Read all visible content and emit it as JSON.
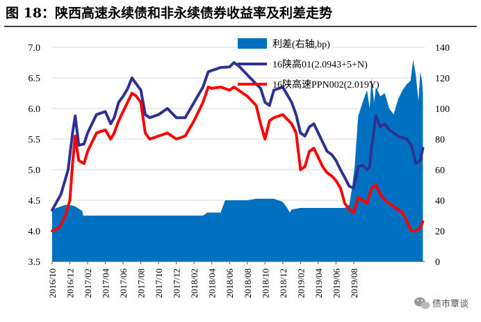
{
  "title": "图 18：陕西高速永续债和非永续债券收益率及利差走势",
  "watermark": "债市覃谈",
  "colors": {
    "spread": "#0070C0",
    "perpetual": "#2E3192",
    "nonperpetual": "#FF0000",
    "grid": "#D9D9D9",
    "title_rule": "#000000"
  },
  "chart_data": {
    "type": "area+line",
    "title": "图 18：陕西高速永续债和非永续债券收益率及利差走势",
    "left_axis": {
      "min": 3.5,
      "max": 7.0,
      "step": 0.5,
      "ticks": [
        "3.5",
        "4.0",
        "4.5",
        "5.0",
        "5.5",
        "6.0",
        "6.5",
        "7.0"
      ],
      "unit": "%"
    },
    "right_axis": {
      "min": 0,
      "max": 140,
      "step": 20,
      "ticks": [
        "0",
        "20",
        "40",
        "60",
        "80",
        "100",
        "120",
        "140"
      ],
      "unit": "bp"
    },
    "x_axis": {
      "start": "2016-10",
      "end": "2019-08",
      "tick_labels": [
        "2016/10",
        "2016/12",
        "2017/02",
        "2017/04",
        "2017/06",
        "2017/08",
        "2017/10",
        "2017/12",
        "2018/02",
        "2018/04",
        "2018/06",
        "2018/08",
        "2018/10",
        "2018/12",
        "2019/02",
        "2019/04",
        "2019/06",
        "2019/08"
      ]
    },
    "grid": true,
    "legend_position": "top-right",
    "series": [
      {
        "name": "利差(右轴,bp)",
        "type": "area",
        "axis": "right",
        "points": [
          [
            0,
            34
          ],
          [
            0.5,
            35
          ],
          [
            1,
            36
          ],
          [
            1.5,
            37
          ],
          [
            2,
            37
          ],
          [
            2.6,
            36
          ],
          [
            3.4,
            33
          ],
          [
            3.5,
            30
          ],
          [
            5,
            30
          ],
          [
            8,
            30
          ],
          [
            12,
            30
          ],
          [
            15,
            30
          ],
          [
            17,
            30
          ],
          [
            17.5,
            32
          ],
          [
            19,
            32
          ],
          [
            19.5,
            40
          ],
          [
            20,
            40
          ],
          [
            22,
            40
          ],
          [
            23,
            41
          ],
          [
            25,
            41
          ],
          [
            25.5,
            40
          ],
          [
            26,
            39
          ],
          [
            26.5,
            35
          ],
          [
            26.8,
            32
          ],
          [
            27,
            34
          ],
          [
            28,
            35
          ],
          [
            29,
            35
          ],
          [
            30,
            35
          ],
          [
            31,
            35
          ],
          [
            32,
            35
          ],
          [
            33,
            35
          ],
          [
            33.5,
            37
          ],
          [
            33.8,
            48
          ],
          [
            34.1,
            62
          ],
          [
            34.5,
            95
          ],
          [
            35,
            104
          ],
          [
            35.5,
            112
          ],
          [
            35.8,
            100
          ],
          [
            36,
            120
          ],
          [
            36.3,
            104
          ],
          [
            36.5,
            114
          ],
          [
            37,
            108
          ],
          [
            37.5,
            110
          ],
          [
            38,
            100
          ],
          [
            38.5,
            96
          ],
          [
            39,
            106
          ],
          [
            39.5,
            112
          ],
          [
            40,
            116
          ],
          [
            40.4,
            118
          ],
          [
            40.7,
            132
          ],
          [
            41,
            122
          ],
          [
            41.3,
            105
          ],
          [
            41.5,
            124
          ],
          [
            41.7,
            118
          ],
          [
            41.8,
            110
          ]
        ]
      },
      {
        "name": "16陕高01(2.0943+5+N)",
        "type": "line",
        "axis": "left",
        "points": [
          [
            0,
            4.34
          ],
          [
            1,
            4.6
          ],
          [
            1.8,
            5.0
          ],
          [
            2.3,
            5.6
          ],
          [
            2.6,
            5.88
          ],
          [
            3,
            5.4
          ],
          [
            3.6,
            5.42
          ],
          [
            4,
            5.6
          ],
          [
            5,
            5.9
          ],
          [
            6,
            5.95
          ],
          [
            6.6,
            5.75
          ],
          [
            7,
            5.85
          ],
          [
            7.5,
            6.1
          ],
          [
            8,
            6.2
          ],
          [
            8.5,
            6.32
          ],
          [
            9,
            6.5
          ],
          [
            9.5,
            6.4
          ],
          [
            10,
            6.3
          ],
          [
            10.5,
            5.9
          ],
          [
            11,
            5.85
          ],
          [
            12,
            5.9
          ],
          [
            13,
            6.0
          ],
          [
            14,
            5.85
          ],
          [
            15,
            5.85
          ],
          [
            16,
            6.1
          ],
          [
            17,
            6.35
          ],
          [
            17.6,
            6.6
          ],
          [
            18,
            6.62
          ],
          [
            19,
            6.67
          ],
          [
            20,
            6.68
          ],
          [
            20.5,
            6.75
          ],
          [
            21,
            6.7
          ],
          [
            22,
            6.55
          ],
          [
            23,
            6.4
          ],
          [
            23.5,
            6.33
          ],
          [
            24,
            6.1
          ],
          [
            24.5,
            6.05
          ],
          [
            25,
            6.3
          ],
          [
            26,
            6.35
          ],
          [
            27,
            6.1
          ],
          [
            27.5,
            5.9
          ],
          [
            28,
            5.6
          ],
          [
            28.5,
            5.55
          ],
          [
            29,
            5.7
          ],
          [
            29.5,
            5.75
          ],
          [
            30,
            5.6
          ],
          [
            30.5,
            5.45
          ],
          [
            31,
            5.3
          ],
          [
            31.5,
            5.25
          ],
          [
            32,
            5.15
          ],
          [
            32.5,
            5.0
          ],
          [
            33,
            4.87
          ],
          [
            33.5,
            4.73
          ],
          [
            34,
            4.7
          ],
          [
            34.5,
            5.05
          ],
          [
            35,
            5.07
          ],
          [
            35.5,
            5.0
          ],
          [
            35.8,
            5.05
          ],
          [
            36,
            5.35
          ],
          [
            36.5,
            5.88
          ],
          [
            37,
            5.7
          ],
          [
            37.5,
            5.75
          ],
          [
            38,
            5.65
          ],
          [
            38.5,
            5.6
          ],
          [
            39,
            5.55
          ],
          [
            39.5,
            5.52
          ],
          [
            40,
            5.5
          ],
          [
            40.5,
            5.4
          ],
          [
            41,
            5.1
          ],
          [
            41.5,
            5.15
          ],
          [
            41.8,
            5.35
          ]
        ]
      },
      {
        "name": "16陕高速PPN002(2.019Y)",
        "type": "line",
        "axis": "left",
        "points": [
          [
            0,
            4.0
          ],
          [
            0.8,
            4.05
          ],
          [
            1.5,
            4.25
          ],
          [
            2,
            4.5
          ],
          [
            2.3,
            5.1
          ],
          [
            2.6,
            5.55
          ],
          [
            3,
            5.15
          ],
          [
            3.6,
            5.1
          ],
          [
            4,
            5.3
          ],
          [
            5,
            5.6
          ],
          [
            6,
            5.65
          ],
          [
            6.6,
            5.5
          ],
          [
            7,
            5.6
          ],
          [
            7.5,
            5.8
          ],
          [
            8,
            5.95
          ],
          [
            8.5,
            6.1
          ],
          [
            9,
            6.25
          ],
          [
            9.5,
            6.2
          ],
          [
            10,
            6.1
          ],
          [
            10.5,
            5.6
          ],
          [
            11,
            5.5
          ],
          [
            12,
            5.55
          ],
          [
            13,
            5.6
          ],
          [
            14,
            5.5
          ],
          [
            15,
            5.55
          ],
          [
            16,
            5.8
          ],
          [
            17,
            6.1
          ],
          [
            17.6,
            6.35
          ],
          [
            18,
            6.33
          ],
          [
            19,
            6.35
          ],
          [
            20,
            6.3
          ],
          [
            20.5,
            6.35
          ],
          [
            21,
            6.3
          ],
          [
            22,
            6.2
          ],
          [
            23,
            6.05
          ],
          [
            23.5,
            5.75
          ],
          [
            24,
            5.5
          ],
          [
            24.5,
            5.8
          ],
          [
            25,
            5.85
          ],
          [
            26,
            5.9
          ],
          [
            27,
            5.75
          ],
          [
            27.5,
            5.6
          ],
          [
            28,
            5.0
          ],
          [
            28.5,
            5.05
          ],
          [
            29,
            5.3
          ],
          [
            29.5,
            5.35
          ],
          [
            30,
            5.2
          ],
          [
            30.5,
            5.05
          ],
          [
            31,
            4.95
          ],
          [
            31.5,
            4.9
          ],
          [
            32,
            4.82
          ],
          [
            32.5,
            4.7
          ],
          [
            33,
            4.45
          ],
          [
            33.5,
            4.35
          ],
          [
            34,
            4.3
          ],
          [
            34.5,
            4.55
          ],
          [
            35,
            4.5
          ],
          [
            35.5,
            4.45
          ],
          [
            36,
            4.7
          ],
          [
            36.5,
            4.75
          ],
          [
            37,
            4.6
          ],
          [
            37.5,
            4.5
          ],
          [
            38,
            4.45
          ],
          [
            38.5,
            4.4
          ],
          [
            39,
            4.35
          ],
          [
            39.5,
            4.3
          ],
          [
            40,
            4.15
          ],
          [
            40.5,
            4.0
          ],
          [
            41,
            4.0
          ],
          [
            41.5,
            4.05
          ],
          [
            41.8,
            4.15
          ]
        ]
      }
    ]
  }
}
